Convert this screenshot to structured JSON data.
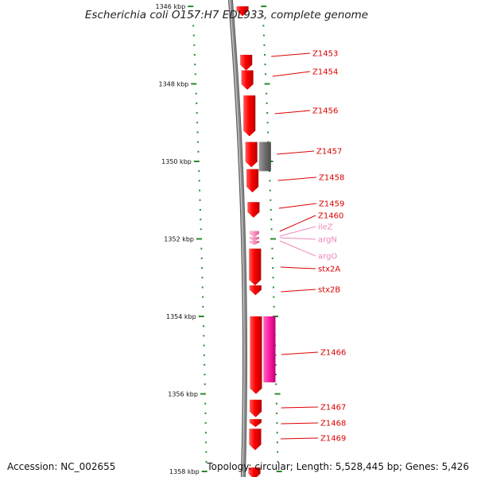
{
  "title": "Escherichia coli O157:H7 EDL933, complete genome",
  "footer": {
    "accession": "Accession: NC_002655",
    "summary": "Topology: circular; Length: 5,528,445 bp; Genes: 5,426"
  },
  "colors": {
    "cds": "#ff0000",
    "rrna": "#ff00aa",
    "trna": "#ff9ecb",
    "misc": "#777777",
    "backbone": "#888888",
    "tick": "#2a8a2a",
    "label_cds": "#dd0000",
    "label_trna": "#ee88bb"
  },
  "axis": {
    "tick_labels": [
      "1346 kbp",
      "1348 kbp",
      "1350 kbp",
      "1352 kbp",
      "1354 kbp",
      "1356 kbp",
      "1358 kbp"
    ]
  },
  "features": {
    "forward": [
      {
        "start": 1346.0,
        "end": 1346.25,
        "strand": 1,
        "type": "cds"
      },
      {
        "start": 1347.25,
        "end": 1347.65,
        "strand": 1,
        "type": "cds"
      },
      {
        "start": 1347.65,
        "end": 1348.15,
        "strand": 1,
        "type": "cds"
      },
      {
        "start": 1348.3,
        "end": 1349.35,
        "strand": 1,
        "type": "cds"
      },
      {
        "start": 1349.5,
        "end": 1350.15,
        "strand": 1,
        "type": "cds"
      },
      {
        "start": 1350.2,
        "end": 1350.8,
        "strand": 1,
        "type": "cds"
      },
      {
        "start": 1351.05,
        "end": 1351.45,
        "strand": 1,
        "type": "cds"
      },
      {
        "start": 1351.8,
        "end": 1351.95,
        "strand": 1,
        "type": "trna"
      },
      {
        "start": 1351.95,
        "end": 1352.05,
        "strand": 1,
        "type": "trna"
      },
      {
        "start": 1352.05,
        "end": 1352.15,
        "strand": 1,
        "type": "trna"
      },
      {
        "start": 1352.25,
        "end": 1353.2,
        "strand": 1,
        "type": "cds"
      },
      {
        "start": 1353.2,
        "end": 1353.45,
        "strand": 1,
        "type": "cds"
      },
      {
        "start": 1354.0,
        "end": 1356.0,
        "strand": 1,
        "type": "cds"
      },
      {
        "start": 1356.15,
        "end": 1356.6,
        "strand": 1,
        "type": "cds"
      },
      {
        "start": 1356.65,
        "end": 1356.85,
        "strand": 1,
        "type": "cds"
      },
      {
        "start": 1356.9,
        "end": 1357.45,
        "strand": 1,
        "type": "cds"
      },
      {
        "start": 1357.9,
        "end": 1358.2,
        "strand": 1,
        "type": "cds"
      }
    ],
    "reverse": [
      {
        "start": 1349.5,
        "end": 1350.25,
        "strand": -1,
        "type": "misc"
      },
      {
        "start": 1354.0,
        "end": 1355.7,
        "strand": -1,
        "type": "rrna"
      }
    ]
  },
  "gene_labels": [
    {
      "name": "Z1453",
      "kind": "cds"
    },
    {
      "name": "Z1454",
      "kind": "cds"
    },
    {
      "name": "Z1456",
      "kind": "cds"
    },
    {
      "name": "Z1457",
      "kind": "cds"
    },
    {
      "name": "Z1458",
      "kind": "cds"
    },
    {
      "name": "Z1459",
      "kind": "cds"
    },
    {
      "name": "Z1460",
      "kind": "cds"
    },
    {
      "name": "ileZ",
      "kind": "trna"
    },
    {
      "name": "argN",
      "kind": "trna"
    },
    {
      "name": "argO",
      "kind": "trna"
    },
    {
      "name": "stx2A",
      "kind": "cds"
    },
    {
      "name": "stx2B",
      "kind": "cds"
    },
    {
      "name": "Z1466",
      "kind": "cds"
    },
    {
      "name": "Z1467",
      "kind": "cds"
    },
    {
      "name": "Z1468",
      "kind": "cds"
    },
    {
      "name": "Z1469",
      "kind": "cds"
    }
  ]
}
